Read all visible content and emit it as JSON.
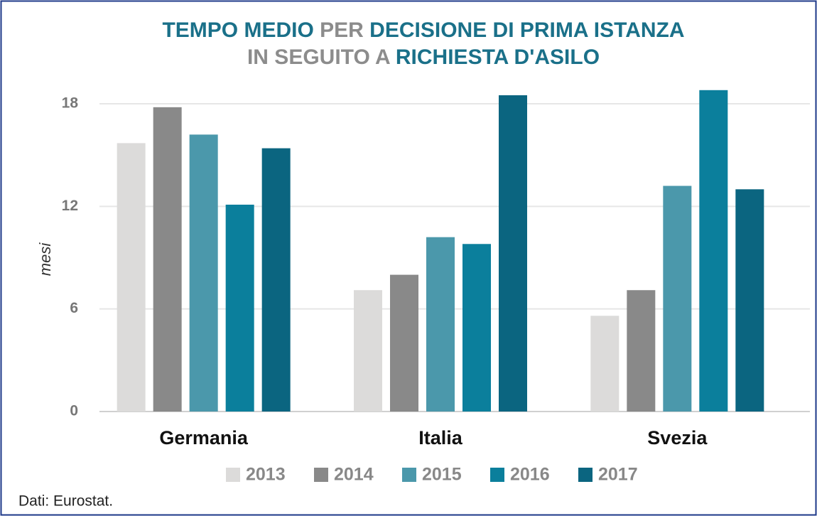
{
  "chart_data": {
    "type": "bar",
    "title_lines": [
      [
        {
          "text": "TEMPO MEDIO ",
          "color": "#1a7089"
        },
        {
          "text": "PER ",
          "color": "#8c8c8c"
        },
        {
          "text": "DECISIONE DI PRIMA ISTANZA",
          "color": "#1a7089"
        }
      ],
      [
        {
          "text": "IN SEGUITO A ",
          "color": "#8c8c8c"
        },
        {
          "text": "RICHIESTA D'ASILO",
          "color": "#1a7089"
        }
      ]
    ],
    "y_label": "mesi",
    "categories": [
      "Germania",
      "Italia",
      "Svezia"
    ],
    "series": [
      {
        "name": "2013",
        "color": "#dcdbda",
        "values": [
          15.7,
          7.1,
          5.6
        ]
      },
      {
        "name": "2014",
        "color": "#898989",
        "values": [
          17.8,
          8.0,
          7.1
        ]
      },
      {
        "name": "2015",
        "color": "#4b98ab",
        "values": [
          16.2,
          10.2,
          13.2
        ]
      },
      {
        "name": "2016",
        "color": "#0b7f9c",
        "values": [
          12.1,
          9.8,
          18.8
        ]
      },
      {
        "name": "2017",
        "color": "#0b6580",
        "values": [
          15.4,
          18.5,
          13.0
        ]
      }
    ],
    "ylim": [
      0,
      19
    ],
    "yticks": [
      0,
      6,
      12,
      18
    ],
    "grid": true,
    "legend": "bottom",
    "source": "Dati: Eurostat."
  }
}
